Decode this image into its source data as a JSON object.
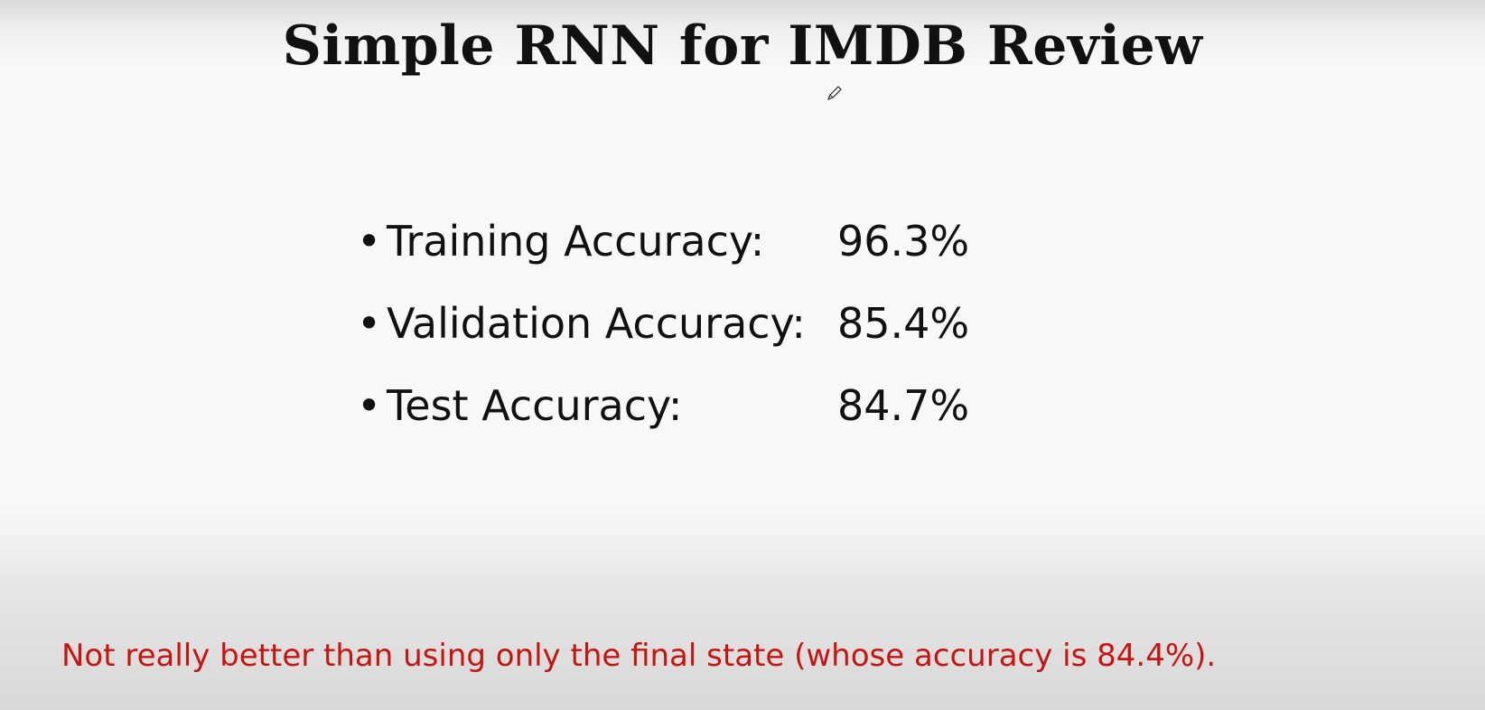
{
  "slide": {
    "title": "Simple RNN for IMDB Review",
    "bullets": [
      {
        "label": "Training Accuracy:",
        "value": "96.3%"
      },
      {
        "label": "Validation Accuracy:",
        "value": "85.4%"
      },
      {
        "label": "Test Accuracy:",
        "value": "84.7%"
      }
    ],
    "note": "Not really better than using only the final state (whose accuracy is 84.4%).",
    "bullet_symbol": "•"
  },
  "cursor": {
    "icon": "pencil-icon"
  },
  "colors": {
    "text": "#111111",
    "note": "#c8140f",
    "background": "#f8f8f8"
  }
}
